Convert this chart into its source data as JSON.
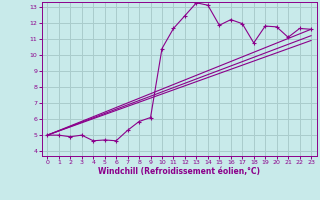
{
  "xlabel": "Windchill (Refroidissement éolien,°C)",
  "bg_color": "#c8eaea",
  "grid_color": "#aacccc",
  "line_color": "#8b008b",
  "xlim": [
    -0.5,
    23.5
  ],
  "ylim": [
    3.7,
    13.3
  ],
  "xticks": [
    0,
    1,
    2,
    3,
    4,
    5,
    6,
    7,
    8,
    9,
    10,
    11,
    12,
    13,
    14,
    15,
    16,
    17,
    18,
    19,
    20,
    21,
    22,
    23
  ],
  "yticks": [
    4,
    5,
    6,
    7,
    8,
    9,
    10,
    11,
    12,
    13
  ],
  "series": [
    [
      0,
      5.0
    ],
    [
      1,
      5.0
    ],
    [
      2,
      4.9
    ],
    [
      3,
      5.0
    ],
    [
      4,
      4.65
    ],
    [
      5,
      4.7
    ],
    [
      6,
      4.65
    ],
    [
      7,
      5.3
    ],
    [
      8,
      5.85
    ],
    [
      9,
      6.1
    ],
    [
      10,
      10.4
    ],
    [
      11,
      11.65
    ],
    [
      12,
      12.45
    ],
    [
      13,
      13.25
    ],
    [
      14,
      13.1
    ],
    [
      15,
      11.85
    ],
    [
      16,
      12.2
    ],
    [
      17,
      11.95
    ],
    [
      18,
      10.75
    ],
    [
      19,
      11.8
    ],
    [
      20,
      11.75
    ],
    [
      21,
      11.1
    ],
    [
      22,
      11.65
    ],
    [
      23,
      11.6
    ]
  ],
  "line1": [
    [
      0,
      5.0
    ],
    [
      23,
      11.6
    ]
  ],
  "line2": [
    [
      0,
      5.0
    ],
    [
      23,
      10.9
    ]
  ],
  "line3": [
    [
      0,
      5.0
    ],
    [
      23,
      11.2
    ]
  ]
}
